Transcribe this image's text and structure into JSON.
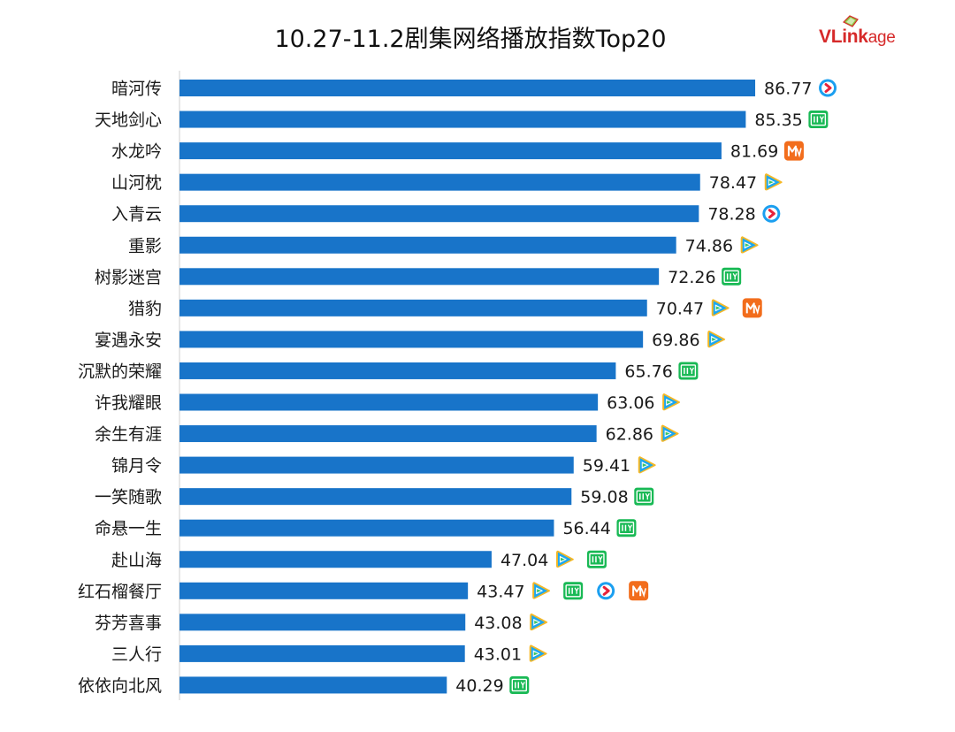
{
  "title": "10.27-11.2剧集网络播放指数Top20",
  "logo": {
    "brand": "VLink",
    "suffix": "age"
  },
  "colors": {
    "bar": "#1874c9",
    "tencent": "#1ba7f1",
    "iqiyi": "#19b955",
    "youku": "#1b9ff0",
    "mango": "#f26d1c",
    "logo": "#d62a2a"
  },
  "platform_icons": {
    "youku": "youku-icon",
    "iqiyi": "iqiyi-icon",
    "mango": "mango-tv-icon",
    "tencent": "tencent-video-icon"
  },
  "chart_data": {
    "type": "bar",
    "orientation": "horizontal",
    "title": "10.27-11.2剧集网络播放指数Top20",
    "xlabel": "",
    "ylabel": "",
    "grid": false,
    "categories": [
      "暗河传",
      "天地剑心",
      "水龙吟",
      "山河枕",
      "入青云",
      "重影",
      "树影迷宫",
      "猎豹",
      "宴遇永安",
      "沉默的荣耀",
      "许我耀眼",
      "余生有涯",
      "锦月令",
      "一笑随歌",
      "命悬一生",
      "赴山海",
      "红石榴餐厅",
      "芬芳喜事",
      "三人行",
      "依依向北风"
    ],
    "values": [
      86.77,
      85.35,
      81.69,
      78.47,
      78.28,
      74.86,
      72.26,
      70.47,
      69.86,
      65.76,
      63.06,
      62.86,
      59.41,
      59.08,
      56.44,
      47.04,
      43.47,
      43.08,
      43.01,
      40.29
    ],
    "value_labels": [
      "86.77",
      "85.35",
      "81.69",
      "78.47",
      "78.28",
      "74.86",
      "72.26",
      "70.47",
      "69.86",
      "65.76",
      "63.06",
      "62.86",
      "59.41",
      "59.08",
      "56.44",
      "47.04",
      "43.47",
      "43.08",
      "43.01",
      "40.29"
    ],
    "platforms": [
      [
        "youku"
      ],
      [
        "iqiyi"
      ],
      [
        "mango"
      ],
      [
        "tencent"
      ],
      [
        "youku"
      ],
      [
        "tencent"
      ],
      [
        "iqiyi"
      ],
      [
        "tencent",
        "mango"
      ],
      [
        "tencent"
      ],
      [
        "iqiyi"
      ],
      [
        "tencent"
      ],
      [
        "tencent"
      ],
      [
        "tencent"
      ],
      [
        "iqiyi"
      ],
      [
        "iqiyi"
      ],
      [
        "tencent",
        "iqiyi"
      ],
      [
        "tencent",
        "iqiyi",
        "youku",
        "mango"
      ],
      [
        "tencent"
      ],
      [
        "tencent"
      ],
      [
        "iqiyi"
      ]
    ]
  }
}
